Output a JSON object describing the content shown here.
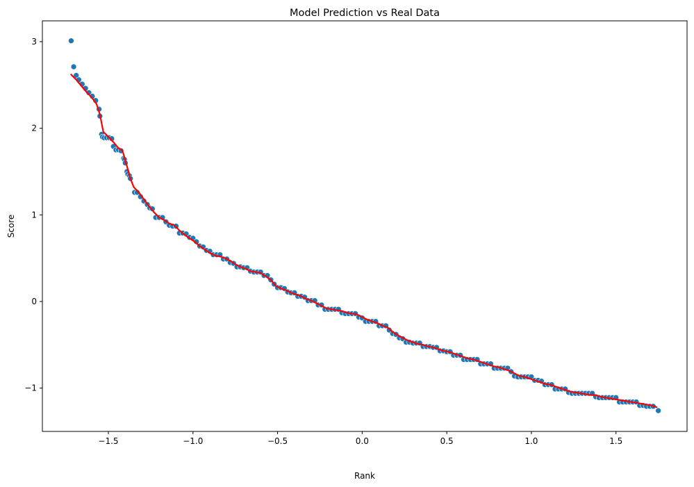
{
  "chart_data": {
    "type": "scatter",
    "title": "Model Prediction vs Real Data",
    "xlabel": "Rank",
    "ylabel": "Score",
    "xlim": [
      -1.89,
      1.92
    ],
    "ylim": [
      -1.5,
      3.24
    ],
    "xticks": [
      -1.5,
      -1.0,
      -0.5,
      0.0,
      0.5,
      1.0,
      1.5
    ],
    "xtick_labels": [
      "−1.5",
      "−1.0",
      "−0.5",
      "0.0",
      "0.5",
      "1.0",
      "1.5"
    ],
    "yticks": [
      -1,
      0,
      1,
      2,
      3
    ],
    "ytick_labels": [
      "−1",
      "0",
      "1",
      "2",
      "3"
    ],
    "grid": false,
    "colors": {
      "points": "#1f77b4",
      "line": "#ff0000"
    },
    "series": [
      {
        "kind": "points",
        "x": [
          -1.72,
          -1.705,
          -1.69,
          -1.675,
          -1.655,
          -1.635,
          -1.615,
          -1.595,
          -1.575,
          -1.555,
          -1.55,
          -1.54,
          -1.535,
          -1.525,
          -1.51,
          -1.495,
          -1.48,
          -1.47,
          -1.455,
          -1.44,
          -1.425,
          -1.41,
          -1.405,
          -1.4,
          -1.39,
          -1.385,
          -1.375,
          -1.37,
          -1.345,
          -1.33,
          -1.31,
          -1.29,
          -1.27,
          -1.255,
          -1.24,
          -1.22,
          -1.2,
          -1.18,
          -1.16,
          -1.14,
          -1.12,
          -1.1,
          -1.08,
          -1.06,
          -1.04,
          -1.02,
          -1.0,
          -0.98,
          -0.96,
          -0.94,
          -0.92,
          -0.9,
          -0.88,
          -0.86,
          -0.84,
          -0.82,
          -0.8,
          -0.78,
          -0.76,
          -0.74,
          -0.72,
          -0.7,
          -0.68,
          -0.66,
          -0.64,
          -0.62,
          -0.6,
          -0.58,
          -0.56,
          -0.54,
          -0.52,
          -0.5,
          -0.48,
          -0.46,
          -0.44,
          -0.42,
          -0.4,
          -0.38,
          -0.36,
          -0.34,
          -0.32,
          -0.3,
          -0.28,
          -0.26,
          -0.24,
          -0.22,
          -0.2,
          -0.18,
          -0.16,
          -0.14,
          -0.12,
          -0.1,
          -0.08,
          -0.06,
          -0.04,
          -0.02,
          0.0,
          0.02,
          0.04,
          0.06,
          0.08,
          0.1,
          0.12,
          0.14,
          0.16,
          0.18,
          0.2,
          0.22,
          0.24,
          0.26,
          0.28,
          0.3,
          0.32,
          0.34,
          0.36,
          0.38,
          0.4,
          0.42,
          0.44,
          0.46,
          0.48,
          0.5,
          0.52,
          0.54,
          0.56,
          0.58,
          0.6,
          0.62,
          0.64,
          0.66,
          0.68,
          0.7,
          0.72,
          0.74,
          0.76,
          0.78,
          0.8,
          0.82,
          0.84,
          0.86,
          0.88,
          0.9,
          0.92,
          0.94,
          0.96,
          0.98,
          1.0,
          1.02,
          1.04,
          1.06,
          1.08,
          1.1,
          1.12,
          1.14,
          1.16,
          1.18,
          1.2,
          1.22,
          1.24,
          1.26,
          1.28,
          1.3,
          1.32,
          1.34,
          1.36,
          1.38,
          1.4,
          1.42,
          1.44,
          1.46,
          1.48,
          1.5,
          1.52,
          1.54,
          1.56,
          1.58,
          1.6,
          1.62,
          1.64,
          1.66,
          1.68,
          1.7,
          1.72,
          1.75
        ],
        "y": [
          3.01,
          2.71,
          2.61,
          2.56,
          2.51,
          2.46,
          2.41,
          2.37,
          2.32,
          2.22,
          2.14,
          1.93,
          1.9,
          1.89,
          1.89,
          1.89,
          1.88,
          1.79,
          1.75,
          1.75,
          1.74,
          1.65,
          1.64,
          1.6,
          1.5,
          1.47,
          1.45,
          1.42,
          1.26,
          1.26,
          1.21,
          1.16,
          1.12,
          1.08,
          1.07,
          0.97,
          0.97,
          0.97,
          0.92,
          0.88,
          0.87,
          0.87,
          0.79,
          0.79,
          0.78,
          0.74,
          0.73,
          0.69,
          0.64,
          0.63,
          0.59,
          0.58,
          0.54,
          0.54,
          0.54,
          0.49,
          0.49,
          0.45,
          0.44,
          0.4,
          0.4,
          0.39,
          0.39,
          0.35,
          0.34,
          0.34,
          0.34,
          0.3,
          0.3,
          0.25,
          0.2,
          0.16,
          0.16,
          0.15,
          0.11,
          0.1,
          0.1,
          0.06,
          0.06,
          0.05,
          0.01,
          0.01,
          0.01,
          -0.04,
          -0.04,
          -0.09,
          -0.09,
          -0.09,
          -0.09,
          -0.09,
          -0.13,
          -0.14,
          -0.14,
          -0.14,
          -0.14,
          -0.18,
          -0.19,
          -0.23,
          -0.23,
          -0.23,
          -0.23,
          -0.28,
          -0.28,
          -0.28,
          -0.33,
          -0.37,
          -0.38,
          -0.42,
          -0.43,
          -0.47,
          -0.47,
          -0.48,
          -0.48,
          -0.48,
          -0.52,
          -0.52,
          -0.52,
          -0.53,
          -0.53,
          -0.57,
          -0.57,
          -0.58,
          -0.58,
          -0.62,
          -0.62,
          -0.62,
          -0.67,
          -0.67,
          -0.67,
          -0.67,
          -0.67,
          -0.72,
          -0.72,
          -0.72,
          -0.72,
          -0.77,
          -0.77,
          -0.77,
          -0.77,
          -0.77,
          -0.81,
          -0.86,
          -0.87,
          -0.87,
          -0.87,
          -0.87,
          -0.87,
          -0.91,
          -0.91,
          -0.92,
          -0.96,
          -0.96,
          -0.96,
          -1.01,
          -1.01,
          -1.01,
          -1.01,
          -1.05,
          -1.06,
          -1.06,
          -1.06,
          -1.06,
          -1.06,
          -1.06,
          -1.06,
          -1.1,
          -1.11,
          -1.11,
          -1.11,
          -1.11,
          -1.11,
          -1.11,
          -1.16,
          -1.16,
          -1.16,
          -1.16,
          -1.16,
          -1.16,
          -1.2,
          -1.2,
          -1.21,
          -1.21,
          -1.21,
          -1.26
        ]
      },
      {
        "kind": "line",
        "x": [
          -1.72,
          -1.69,
          -1.66,
          -1.63,
          -1.6,
          -1.57,
          -1.55,
          -1.53,
          -1.5,
          -1.47,
          -1.44,
          -1.42,
          -1.41,
          -1.39,
          -1.37,
          -1.35,
          -1.32,
          -1.29,
          -1.26,
          -1.23,
          -1.2,
          -1.17,
          -1.14,
          -1.11,
          -1.08,
          -1.05,
          -1.02,
          -0.99,
          -0.96,
          -0.93,
          -0.9,
          -0.87,
          -0.84,
          -0.81,
          -0.78,
          -0.75,
          -0.72,
          -0.69,
          -0.66,
          -0.63,
          -0.6,
          -0.57,
          -0.54,
          -0.51,
          -0.48,
          -0.45,
          -0.42,
          -0.39,
          -0.36,
          -0.33,
          -0.3,
          -0.27,
          -0.24,
          -0.21,
          -0.18,
          -0.15,
          -0.12,
          -0.09,
          -0.06,
          -0.03,
          0.0,
          0.03,
          0.06,
          0.09,
          0.12,
          0.15,
          0.18,
          0.21,
          0.24,
          0.27,
          0.3,
          0.33,
          0.36,
          0.39,
          0.42,
          0.45,
          0.48,
          0.51,
          0.54,
          0.57,
          0.6,
          0.63,
          0.66,
          0.69,
          0.72,
          0.75,
          0.78,
          0.81,
          0.84,
          0.87,
          0.9,
          0.93,
          0.96,
          0.99,
          1.02,
          1.05,
          1.08,
          1.11,
          1.14,
          1.17,
          1.2,
          1.23,
          1.26,
          1.29,
          1.32,
          1.35,
          1.38,
          1.41,
          1.44,
          1.47,
          1.5,
          1.53,
          1.56,
          1.59,
          1.62,
          1.65,
          1.68,
          1.71,
          1.74
        ],
        "y": [
          2.62,
          2.56,
          2.49,
          2.42,
          2.36,
          2.28,
          2.16,
          1.96,
          1.9,
          1.84,
          1.77,
          1.75,
          1.7,
          1.56,
          1.42,
          1.32,
          1.26,
          1.18,
          1.1,
          1.03,
          0.97,
          0.94,
          0.9,
          0.88,
          0.82,
          0.77,
          0.73,
          0.69,
          0.64,
          0.6,
          0.56,
          0.53,
          0.52,
          0.5,
          0.47,
          0.43,
          0.4,
          0.38,
          0.35,
          0.34,
          0.33,
          0.29,
          0.25,
          0.18,
          0.15,
          0.13,
          0.1,
          0.08,
          0.06,
          0.03,
          0.01,
          -0.02,
          -0.05,
          -0.08,
          -0.09,
          -0.1,
          -0.11,
          -0.13,
          -0.14,
          -0.15,
          -0.18,
          -0.21,
          -0.23,
          -0.25,
          -0.28,
          -0.3,
          -0.35,
          -0.39,
          -0.42,
          -0.45,
          -0.47,
          -0.49,
          -0.5,
          -0.52,
          -0.53,
          -0.55,
          -0.57,
          -0.58,
          -0.6,
          -0.62,
          -0.64,
          -0.66,
          -0.67,
          -0.69,
          -0.71,
          -0.73,
          -0.75,
          -0.76,
          -0.78,
          -0.8,
          -0.83,
          -0.86,
          -0.87,
          -0.89,
          -0.91,
          -0.93,
          -0.95,
          -0.96,
          -0.98,
          -1.0,
          -1.02,
          -1.04,
          -1.05,
          -1.06,
          -1.07,
          -1.08,
          -1.08,
          -1.1,
          -1.11,
          -1.12,
          -1.13,
          -1.14,
          -1.15,
          -1.16,
          -1.17,
          -1.18,
          -1.19,
          -1.2,
          -1.22
        ]
      }
    ]
  }
}
